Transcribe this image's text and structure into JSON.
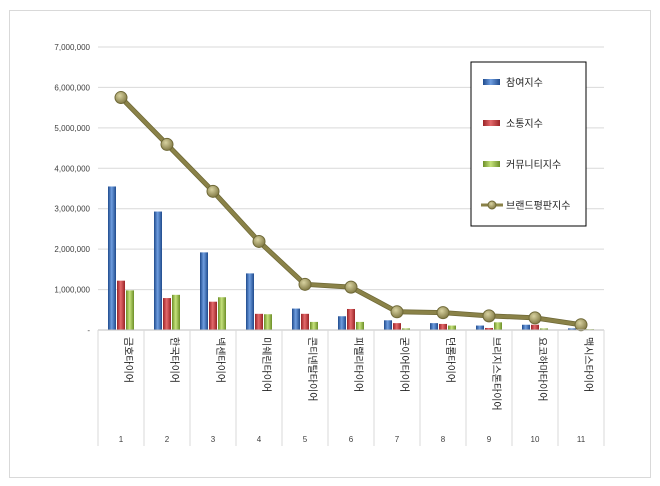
{
  "chart_data": {
    "type": "bar",
    "title": "",
    "xlabel": "",
    "ylabel": "",
    "ylim": [
      0,
      7000000
    ],
    "y_ticks": [
      "-",
      "1,000,000",
      "2,000,000",
      "3,000,000",
      "4,000,000",
      "5,000,000",
      "6,000,000",
      "7,000,000"
    ],
    "grid": true,
    "legend_position": "top-right",
    "categories": [
      {
        "number": "1",
        "label": "금호타이어"
      },
      {
        "number": "2",
        "label": "한국타이어"
      },
      {
        "number": "3",
        "label": "넥센타이어"
      },
      {
        "number": "4",
        "label": "미쉐린타이어"
      },
      {
        "number": "5",
        "label": "콘티넨탈타이어"
      },
      {
        "number": "6",
        "label": "피렐리타이어"
      },
      {
        "number": "7",
        "label": "굳이어타이어"
      },
      {
        "number": "8",
        "label": "던롭타이어"
      },
      {
        "number": "9",
        "label": "브리지스톤타이어"
      },
      {
        "number": "10",
        "label": "요코하마타이어"
      },
      {
        "number": "11",
        "label": "맥시스타이어"
      }
    ],
    "series": [
      {
        "name": "참여지수",
        "kind": "bar",
        "color": "#2e5fa8",
        "values": [
          3550000,
          2930000,
          1920000,
          1400000,
          530000,
          340000,
          240000,
          170000,
          110000,
          130000,
          40000
        ]
      },
      {
        "name": "소통지수",
        "kind": "bar",
        "color": "#c0393b",
        "values": [
          1220000,
          790000,
          700000,
          400000,
          400000,
          520000,
          170000,
          150000,
          50000,
          130000,
          20000
        ]
      },
      {
        "name": "커뮤니티지수",
        "kind": "bar",
        "color": "#8fb73e",
        "values": [
          980000,
          870000,
          810000,
          390000,
          200000,
          200000,
          40000,
          110000,
          190000,
          40000,
          20000
        ]
      },
      {
        "name": "브랜드평판지수",
        "kind": "line",
        "color": "#8a8248",
        "values": [
          5750000,
          4590000,
          3430000,
          2190000,
          1130000,
          1060000,
          450000,
          430000,
          350000,
          300000,
          130000
        ]
      }
    ]
  }
}
